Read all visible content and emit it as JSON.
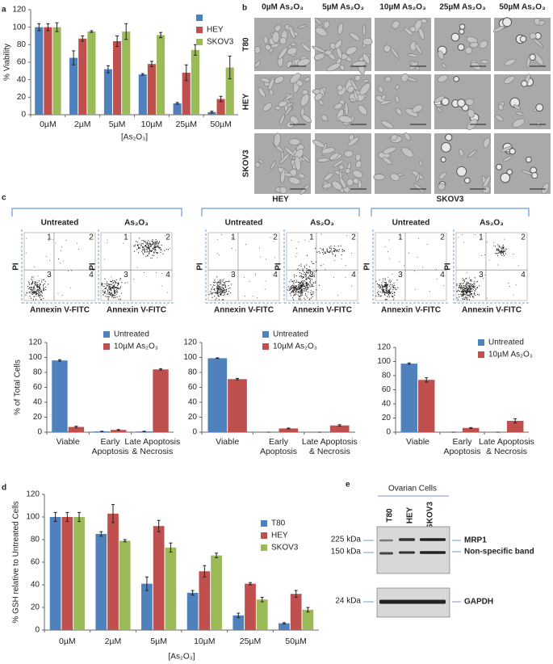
{
  "panel_labels": [
    "a",
    "b",
    "c",
    "d",
    "e"
  ],
  "chart_data": [
    {
      "type": "bar",
      "ylabel": "% Viability",
      "xlabel": "[As₂O₃]",
      "categories": [
        "0µM",
        "2µM",
        "5µM",
        "10µM",
        "25µM",
        "50µM"
      ],
      "series": [
        {
          "color": "#4f81bd",
          "values": [
            100,
            65,
            52,
            46,
            13,
            3
          ],
          "errors": [
            4,
            8,
            4,
            1,
            1,
            1
          ]
        },
        {
          "name": "HEY",
          "color": "#c0504d",
          "values": [
            100,
            87,
            84,
            58,
            48,
            18
          ],
          "errors": [
            4,
            3,
            6,
            3,
            9,
            3
          ]
        },
        {
          "name": "SKOV3",
          "color": "#9bbb59",
          "values": [
            100,
            95,
            95,
            91,
            74,
            54
          ],
          "errors": [
            5,
            1,
            9,
            3,
            6,
            13
          ]
        }
      ],
      "ylim": [
        0,
        120
      ],
      "yticks": [
        0,
        20,
        40,
        60,
        80,
        100,
        120
      ]
    },
    {
      "type": "bar",
      "ylabel": "% of Total Cells",
      "categories": [
        "Viable",
        "Early Apoptosis",
        "Late Apoptosis & Necrosis"
      ],
      "series": [
        {
          "name": "Untreated",
          "color": "#4f81bd",
          "values": [
            96,
            1,
            1
          ],
          "errors": [
            1,
            0.3,
            0.3
          ]
        },
        {
          "name": "10µM As₂O₃",
          "color": "#c0504d",
          "values": [
            7,
            3,
            84
          ],
          "errors": [
            1,
            0.5,
            1
          ]
        }
      ],
      "ylim": [
        0,
        120
      ],
      "yticks": [
        0,
        20,
        40,
        60,
        80,
        100,
        120
      ]
    },
    {
      "type": "bar",
      "categories": [
        "Viable",
        "Early Apoptosis",
        "Late Apoptosis & Necrosis"
      ],
      "series": [
        {
          "name": "Untreated",
          "color": "#4f81bd",
          "values": [
            99,
            0,
            0
          ],
          "errors": [
            0.5,
            0,
            0
          ]
        },
        {
          "name": "10µM As₂O₃",
          "color": "#c0504d",
          "values": [
            71,
            5,
            9
          ],
          "errors": [
            1,
            0.5,
            1
          ]
        }
      ],
      "ylim": [
        0,
        120
      ],
      "yticks": [
        0,
        20,
        40,
        60,
        80,
        100,
        120
      ]
    },
    {
      "type": "bar",
      "categories": [
        "Viable",
        "Early Apoptosis",
        "Late Apoptosis & Necrosis"
      ],
      "series": [
        {
          "name": "Untreated",
          "color": "#4f81bd",
          "values": [
            97,
            0,
            0
          ],
          "errors": [
            1,
            0,
            0
          ]
        },
        {
          "name": "10µM As₂O₃",
          "color": "#c0504d",
          "values": [
            74,
            6,
            16
          ],
          "errors": [
            3,
            0.5,
            3
          ]
        }
      ],
      "ylim": [
        0,
        120
      ],
      "yticks": [
        0,
        20,
        40,
        60,
        80,
        100,
        120
      ]
    },
    {
      "type": "bar",
      "ylabel": "% GSH relative to Untreated Cells",
      "xlabel": "[As₂O₃]",
      "categories": [
        "0µM",
        "2µM",
        "5µM",
        "10µM",
        "25µM",
        "50µM"
      ],
      "series": [
        {
          "name": "T80",
          "color": "#4f81bd",
          "values": [
            100,
            85,
            41,
            33,
            13,
            6
          ],
          "errors": [
            4,
            2,
            6,
            2,
            2,
            0.5
          ]
        },
        {
          "name": "HEY",
          "color": "#c0504d",
          "values": [
            100,
            103,
            92,
            52,
            41,
            32
          ],
          "errors": [
            4,
            8,
            5,
            5,
            1,
            3
          ]
        },
        {
          "name": "SKOV3",
          "color": "#9bbb59",
          "values": [
            100,
            79,
            73,
            66,
            27,
            18
          ],
          "errors": [
            4,
            1,
            4,
            2,
            2,
            2
          ]
        }
      ],
      "ylim": [
        0,
        120
      ],
      "yticks": [
        0,
        20,
        40,
        60,
        80,
        100,
        120
      ]
    }
  ],
  "micrographs": {
    "columns": [
      "0µM As₂O₃",
      "5µM As₂O₃",
      "10µM As₂O₃",
      "25µM As₂O₃",
      "50µM As₂O₃"
    ],
    "rows": [
      "T80",
      "HEY",
      "SKOV3"
    ]
  },
  "flow": {
    "quadrants": [
      "1",
      "2",
      "3",
      "4"
    ],
    "groups": [
      {
        "plots": [
          {
            "title": "Untreated",
            "ylabel": "PI",
            "xlabel": "Annexin V-FITC"
          },
          {
            "title": "As₂O₃",
            "ylabel": "PI",
            "xlabel": "Annexin V-FITC"
          }
        ]
      },
      {
        "name": "HEY",
        "plots": [
          {
            "title": "Untreated",
            "ylabel": "PI",
            "xlabel": "Annexin V-FITC"
          },
          {
            "title": "As₂O₃",
            "ylabel": "PI",
            "xlabel": "Annexin V-FITC"
          }
        ]
      },
      {
        "name": "SKOV3",
        "plots": [
          {
            "title": "Untreated",
            "ylabel": "PI",
            "xlabel": "Annexin V-FITC"
          },
          {
            "title": "As₂O₃",
            "ylabel": "PI",
            "xlabel": "Annexin V-FITC"
          }
        ]
      }
    ]
  },
  "blot": {
    "title": "Ovarian Cells",
    "lanes": [
      "T80",
      "HEY",
      "SKOV3"
    ],
    "markers": [
      "225 kDa",
      "150 kDa",
      "24 kDa"
    ],
    "bands": [
      "MRP1",
      "Non-specific band",
      "GAPDH"
    ]
  }
}
